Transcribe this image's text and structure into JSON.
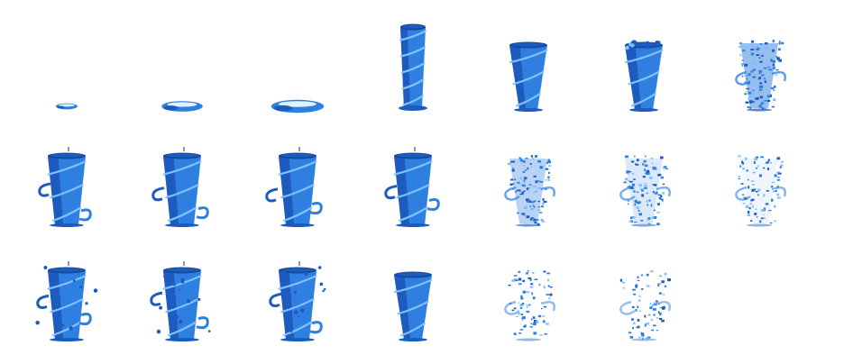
{
  "sheet": {
    "background": "#ffffff",
    "palette": {
      "dark": "#1e5bbf",
      "main": "#2f7fe0",
      "light": "#7fc0ff",
      "highlight": "#dff2ff",
      "shadow": "#164a9c"
    },
    "frames": [
      {
        "row": 0,
        "col": 0,
        "kind": "puddle",
        "size": 0.15
      },
      {
        "row": 0,
        "col": 1,
        "kind": "puddle",
        "size": 0.42
      },
      {
        "row": 0,
        "col": 2,
        "kind": "puddle",
        "size": 0.58
      },
      {
        "row": 0,
        "col": 3,
        "kind": "column",
        "level": 1.0
      },
      {
        "row": 0,
        "col": 4,
        "kind": "cone",
        "level": 0.95,
        "burst": 0.0
      },
      {
        "row": 0,
        "col": 5,
        "kind": "cone",
        "level": 0.95,
        "burst": 0.2
      },
      {
        "row": 0,
        "col": 6,
        "kind": "burst",
        "level": 0.95,
        "burst": 0.45
      },
      {
        "row": 1,
        "col": 0,
        "kind": "spout",
        "level": 0.95,
        "phase": 0
      },
      {
        "row": 1,
        "col": 1,
        "kind": "spout",
        "level": 0.95,
        "phase": 1
      },
      {
        "row": 1,
        "col": 2,
        "kind": "spout",
        "level": 0.95,
        "phase": 2
      },
      {
        "row": 1,
        "col": 3,
        "kind": "spout",
        "level": 0.95,
        "phase": 3
      },
      {
        "row": 1,
        "col": 4,
        "kind": "burst",
        "level": 0.8,
        "burst": 0.6
      },
      {
        "row": 1,
        "col": 5,
        "kind": "burst",
        "level": 0.8,
        "burst": 0.75
      },
      {
        "row": 1,
        "col": 6,
        "kind": "burst",
        "level": 0.8,
        "burst": 0.85
      },
      {
        "row": 2,
        "col": 0,
        "kind": "spout",
        "level": 0.95,
        "phase": 4
      },
      {
        "row": 2,
        "col": 1,
        "kind": "spout",
        "level": 0.95,
        "phase": 5
      },
      {
        "row": 2,
        "col": 2,
        "kind": "spout",
        "level": 0.95,
        "phase": 6
      },
      {
        "row": 2,
        "col": 3,
        "kind": "cone",
        "level": 0.95,
        "burst": 0.0
      },
      {
        "row": 2,
        "col": 4,
        "kind": "burst",
        "level": 0.75,
        "burst": 0.93
      },
      {
        "row": 2,
        "col": 5,
        "kind": "burst",
        "level": 0.7,
        "burst": 1.0
      }
    ]
  }
}
